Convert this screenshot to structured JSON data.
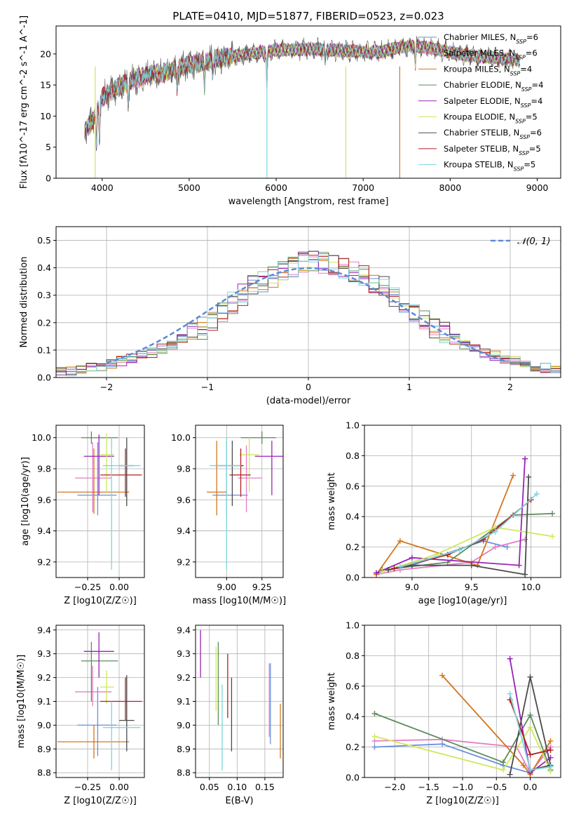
{
  "figure": {
    "title": "PLATE=0410, MJD=51877, FIBERID=0523, z=0.023"
  },
  "chart_data": [
    {
      "id": "spectrum",
      "type": "line",
      "xlabel": "wavelength [Angstrom, rest frame]",
      "ylabel": "Flux [fλ10^-17 erg cm^-2 s^-1 A^-1]",
      "xlim": [
        3470,
        9270
      ],
      "ylim": [
        0,
        24.5
      ],
      "xticks": [
        4000,
        5000,
        6000,
        7000,
        8000,
        9000
      ],
      "yticks": [
        0,
        5,
        10,
        15,
        20
      ],
      "grid": false,
      "legend": "top-right",
      "continuum": {
        "x": [
          3800,
          3900,
          4000,
          4100,
          4300,
          4500,
          4700,
          5000,
          5300,
          5600,
          6000,
          6400,
          6800,
          7200,
          7400,
          7600,
          7800,
          8200,
          8600,
          8800
        ],
        "y": [
          7.5,
          9.5,
          13,
          14,
          15.5,
          16.5,
          17,
          18.2,
          19.2,
          19.8,
          20.6,
          20.8,
          20.5,
          20.3,
          21,
          21.3,
          20.8,
          19.8,
          19.2,
          19.0
        ]
      },
      "series": [
        {
          "name": "Chabrier MILES, N_SSP=6",
          "color": "#6a8fdc"
        },
        {
          "name": "Salpeter MILES, N_SSP=6",
          "color": "#e57ec4"
        },
        {
          "name": "Kroupa MILES, N_SSP=4",
          "color": "#d2771d"
        },
        {
          "name": "Chabrier ELODIE, N_SSP=4",
          "color": "#5c8a5c"
        },
        {
          "name": "Salpeter ELODIE, N_SSP=4",
          "color": "#9a22b5"
        },
        {
          "name": "Kroupa ELODIE, N_SSP=5",
          "color": "#cfe85a"
        },
        {
          "name": "Chabrier STELIB, N_SSP=6",
          "color": "#4a4a4a"
        },
        {
          "name": "Salpeter STELIB, N_SSP=5",
          "color": "#b01e22"
        },
        {
          "name": "Kroupa STELIB, N_SSP=5",
          "color": "#7dd6dc"
        }
      ]
    },
    {
      "id": "residuals",
      "type": "line",
      "xlabel": "(data-model)/error",
      "ylabel": "Normed distribution",
      "xlim": [
        -2.5,
        2.5
      ],
      "ylim": [
        0,
        0.55
      ],
      "xticks": [
        -2,
        -1,
        0,
        1,
        2
      ],
      "yticks": [
        0.0,
        0.1,
        0.2,
        0.3,
        0.4,
        0.5
      ],
      "grid": true,
      "legend": "top-right",
      "reference": {
        "name": "𝒩(0, 1)",
        "color": "#5a8ad6"
      },
      "bin_width": 0.1,
      "base_histogram": {
        "x_start": -2.5,
        "values": [
          0.02,
          0.025,
          0.03,
          0.035,
          0.04,
          0.05,
          0.06,
          0.07,
          0.08,
          0.09,
          0.105,
          0.12,
          0.14,
          0.16,
          0.18,
          0.21,
          0.24,
          0.27,
          0.3,
          0.33,
          0.35,
          0.37,
          0.39,
          0.4,
          0.42,
          0.43,
          0.42,
          0.41,
          0.4,
          0.39,
          0.37,
          0.35,
          0.33,
          0.3,
          0.27,
          0.24,
          0.21,
          0.18,
          0.16,
          0.14,
          0.12,
          0.105,
          0.09,
          0.08,
          0.07,
          0.06,
          0.05,
          0.04,
          0.035,
          0.03
        ]
      }
    },
    {
      "id": "age-vs-Z",
      "type": "scatter",
      "xlabel": "Z [log10(Z/Z☉)]",
      "ylabel": "age [log10(age/yr)]",
      "xlim": [
        -0.5,
        0.2
      ],
      "ylim": [
        9.1,
        10.08
      ],
      "xticks": [
        -0.25,
        0.0
      ],
      "xtick_labels": [
        "−0.25",
        "0.00"
      ],
      "yticks": [
        9.2,
        9.4,
        9.6,
        9.8,
        10.0
      ],
      "ytick_labels": [
        "9.2",
        "9.4",
        "9.6",
        "9.8",
        "10.0"
      ],
      "grid": true,
      "points": [
        {
          "x": -0.17,
          "xlo": -0.33,
          "xhi": -0.02,
          "y": 9.63,
          "ylo": 9.5,
          "yhi": 9.97,
          "color": "#6a8fdc"
        },
        {
          "x": -0.21,
          "xlo": -0.35,
          "xhi": -0.06,
          "y": 9.74,
          "ylo": 9.52,
          "yhi": 9.97,
          "color": "#e57ec4"
        },
        {
          "x": -0.2,
          "xlo": -0.49,
          "xhi": 0.08,
          "y": 9.65,
          "ylo": 9.51,
          "yhi": 9.93,
          "color": "#d2771d"
        },
        {
          "x": -0.22,
          "xlo": -0.3,
          "xhi": -0.01,
          "y": 10.0,
          "ylo": 9.96,
          "yhi": 10.04,
          "color": "#5c8a5c"
        },
        {
          "x": -0.16,
          "xlo": -0.28,
          "xhi": -0.04,
          "y": 9.88,
          "ylo": 9.63,
          "yhi": 10.02,
          "color": "#9a22b5"
        },
        {
          "x": -0.1,
          "xlo": -0.15,
          "xhi": -0.04,
          "y": 9.89,
          "ylo": 9.65,
          "yhi": 10.03,
          "color": "#cfe85a"
        },
        {
          "x": 0.06,
          "xlo": 0.0,
          "xhi": 0.12,
          "y": 9.82,
          "ylo": 9.56,
          "yhi": 10.0,
          "color": "#4a4a4a"
        },
        {
          "x": 0.05,
          "xlo": -0.15,
          "xhi": 0.18,
          "y": 9.76,
          "ylo": 9.62,
          "yhi": 9.93,
          "color": "#b01e22"
        },
        {
          "x": -0.06,
          "xlo": -0.13,
          "xhi": 0.17,
          "y": 9.82,
          "ylo": 9.15,
          "yhi": 10.0,
          "color": "#7dd6dc"
        }
      ]
    },
    {
      "id": "age-vs-mass",
      "type": "scatter",
      "xlabel": "mass [log10(M/M☉)]",
      "ylabel": "",
      "xlim": [
        8.78,
        9.4
      ],
      "ylim": [
        9.1,
        10.08
      ],
      "xticks": [
        9.0,
        9.25
      ],
      "xtick_labels": [
        "9.00",
        "9.25"
      ],
      "yticks": [
        9.2,
        9.4,
        9.6,
        9.8,
        10.0
      ],
      "ytick_labels": [
        "9.2",
        "9.4",
        "9.6",
        "9.8",
        "10.0"
      ],
      "grid": true,
      "points": [
        {
          "x": 9.0,
          "xlo": 8.9,
          "xhi": 9.15,
          "y": 9.63,
          "ylo": 9.5,
          "yhi": 9.98,
          "color": "#6a8fdc"
        },
        {
          "x": 9.14,
          "xlo": 9.08,
          "xhi": 9.25,
          "y": 9.74,
          "ylo": 9.52,
          "yhi": 9.95,
          "color": "#e57ec4"
        },
        {
          "x": 8.93,
          "xlo": 8.86,
          "xhi": 9.0,
          "y": 9.65,
          "ylo": 9.5,
          "yhi": 9.98,
          "color": "#d2771d"
        },
        {
          "x": 9.25,
          "xlo": 9.1,
          "xhi": 9.35,
          "y": 10.0,
          "ylo": 9.96,
          "yhi": 10.04,
          "color": "#5c8a5c"
        },
        {
          "x": 9.32,
          "xlo": 9.2,
          "xhi": 9.4,
          "y": 9.88,
          "ylo": 9.63,
          "yhi": 9.98,
          "color": "#9a22b5"
        },
        {
          "x": 9.16,
          "xlo": 9.09,
          "xhi": 9.23,
          "y": 9.89,
          "ylo": 9.65,
          "yhi": 10.0,
          "color": "#cfe85a"
        },
        {
          "x": 9.04,
          "xlo": 8.92,
          "xhi": 9.12,
          "y": 9.82,
          "ylo": 9.56,
          "yhi": 9.98,
          "color": "#4a4a4a"
        },
        {
          "x": 9.1,
          "xlo": 9.02,
          "xhi": 9.17,
          "y": 9.76,
          "ylo": 9.62,
          "yhi": 9.93,
          "color": "#b01e22"
        },
        {
          "x": 9.0,
          "xlo": 8.88,
          "xhi": 9.1,
          "y": 9.82,
          "ylo": 9.15,
          "yhi": 10.0,
          "color": "#7dd6dc"
        }
      ]
    },
    {
      "id": "weight-vs-age",
      "type": "line",
      "xlabel": "age [log10(age/yr)]",
      "ylabel": "mass weight",
      "xlim": [
        8.6,
        10.25
      ],
      "ylim": [
        0,
        1.0
      ],
      "xticks": [
        9.0,
        9.5,
        10.0
      ],
      "xtick_labels": [
        "9.0",
        "9.5",
        "10.0"
      ],
      "yticks": [
        0.0,
        0.2,
        0.4,
        0.6,
        0.8,
        1.0
      ],
      "ytick_labels": [
        "0.0",
        "0.2",
        "0.4",
        "0.6",
        "0.8",
        "1.0"
      ],
      "grid": true,
      "series": [
        {
          "color": "#6a8fdc",
          "x": [
            8.7,
            8.8,
            9.0,
            9.6,
            9.8
          ],
          "y": [
            0.03,
            0.05,
            0.08,
            0.24,
            0.2
          ]
        },
        {
          "color": "#e57ec4",
          "x": [
            8.7,
            8.9,
            9.5,
            9.7,
            9.95
          ],
          "y": [
            0.02,
            0.05,
            0.1,
            0.2,
            0.25
          ]
        },
        {
          "color": "#d2771d",
          "x": [
            8.7,
            8.9,
            9.55,
            9.85
          ],
          "y": [
            0.02,
            0.24,
            0.08,
            0.67
          ]
        },
        {
          "color": "#5c8a5c",
          "x": [
            8.75,
            9.3,
            9.85,
            10.18
          ],
          "y": [
            0.05,
            0.1,
            0.41,
            0.42
          ]
        },
        {
          "color": "#9a22b5",
          "x": [
            8.7,
            9.0,
            9.9,
            9.95
          ],
          "y": [
            0.03,
            0.13,
            0.08,
            0.78
          ]
        },
        {
          "color": "#cfe85a",
          "x": [
            8.75,
            9.2,
            9.7,
            10.18
          ],
          "y": [
            0.04,
            0.15,
            0.33,
            0.27
          ]
        },
        {
          "color": "#4a4a4a",
          "x": [
            8.8,
            9.0,
            9.5,
            9.95,
            9.98
          ],
          "y": [
            0.05,
            0.08,
            0.08,
            0.02,
            0.66
          ]
        },
        {
          "color": "#b01e22",
          "x": [
            8.85,
            9.3,
            9.6,
            10.0
          ],
          "y": [
            0.06,
            0.15,
            0.25,
            0.51
          ]
        },
        {
          "color": "#7dd6dc",
          "x": [
            8.9,
            9.4,
            9.7,
            10.05
          ],
          "y": [
            0.07,
            0.18,
            0.3,
            0.55
          ]
        }
      ]
    },
    {
      "id": "mass-vs-Z",
      "type": "scatter",
      "xlabel": "Z [log10(Z/Z☉)]",
      "ylabel": "mass [log10(M/M☉)]",
      "xlim": [
        -0.5,
        0.2
      ],
      "ylim": [
        8.78,
        9.42
      ],
      "xticks": [
        -0.25,
        0.0
      ],
      "xtick_labels": [
        "−0.25",
        "0.00"
      ],
      "yticks": [
        8.8,
        8.9,
        9.0,
        9.1,
        9.2,
        9.3,
        9.4
      ],
      "ytick_labels": [
        "8.8",
        "8.9",
        "9.0",
        "9.1",
        "9.2",
        "9.3",
        "9.4"
      ],
      "grid": true,
      "points": [
        {
          "x": -0.17,
          "xlo": -0.33,
          "xhi": -0.02,
          "y": 9.0,
          "ylo": 8.87,
          "yhi": 9.16,
          "color": "#6a8fdc"
        },
        {
          "x": -0.21,
          "xlo": -0.35,
          "xhi": -0.06,
          "y": 9.14,
          "ylo": 9.08,
          "yhi": 9.25,
          "color": "#e57ec4"
        },
        {
          "x": -0.2,
          "xlo": -0.49,
          "xhi": 0.08,
          "y": 8.93,
          "ylo": 8.86,
          "yhi": 9.0,
          "color": "#d2771d"
        },
        {
          "x": -0.22,
          "xlo": -0.3,
          "xhi": -0.01,
          "y": 9.27,
          "ylo": 9.1,
          "yhi": 9.35,
          "color": "#5c8a5c"
        },
        {
          "x": -0.16,
          "xlo": -0.28,
          "xhi": -0.04,
          "y": 9.31,
          "ylo": 9.2,
          "yhi": 9.39,
          "color": "#9a22b5"
        },
        {
          "x": -0.1,
          "xlo": -0.15,
          "xhi": -0.04,
          "y": 9.16,
          "ylo": 9.09,
          "yhi": 9.23,
          "color": "#cfe85a"
        },
        {
          "x": 0.06,
          "xlo": 0.0,
          "xhi": 0.12,
          "y": 9.02,
          "ylo": 8.89,
          "yhi": 9.21,
          "color": "#4a4a4a"
        },
        {
          "x": 0.05,
          "xlo": -0.15,
          "xhi": 0.18,
          "y": 9.1,
          "ylo": 9.02,
          "yhi": 9.2,
          "color": "#b01e22"
        },
        {
          "x": -0.06,
          "xlo": -0.13,
          "xhi": 0.17,
          "y": 8.99,
          "ylo": 8.81,
          "yhi": 9.1,
          "color": "#7dd6dc"
        }
      ]
    },
    {
      "id": "mass-vs-EBV",
      "type": "scatter",
      "xlabel": "E(B-V)",
      "ylabel": "",
      "xlim": [
        0.025,
        0.183
      ],
      "ylim": [
        8.78,
        9.42
      ],
      "xticks": [
        0.05,
        0.1,
        0.15
      ],
      "xtick_labels": [
        "0.05",
        "0.10",
        "0.15"
      ],
      "yticks": [
        8.8,
        8.9,
        9.0,
        9.1,
        9.2,
        9.3,
        9.4
      ],
      "ytick_labels": [
        "8.8",
        "8.9",
        "9.0",
        "9.1",
        "9.2",
        "9.3",
        "9.4"
      ],
      "grid": true,
      "points": [
        {
          "x": 0.16,
          "ylo": 8.92,
          "yhi": 9.26,
          "color": "#6a8fdc"
        },
        {
          "x": 0.158,
          "ylo": 8.95,
          "yhi": 9.26,
          "color": "#e57ec4"
        },
        {
          "x": 0.178,
          "ylo": 8.86,
          "yhi": 9.09,
          "color": "#d2771d"
        },
        {
          "x": 0.066,
          "ylo": 9.0,
          "yhi": 9.35,
          "color": "#5c8a5c"
        },
        {
          "x": 0.034,
          "ylo": 9.2,
          "yhi": 9.4,
          "color": "#9a22b5"
        },
        {
          "x": 0.062,
          "ylo": 9.06,
          "yhi": 9.33,
          "color": "#cfe85a"
        },
        {
          "x": 0.09,
          "ylo": 8.89,
          "yhi": 9.2,
          "color": "#4a4a4a"
        },
        {
          "x": 0.083,
          "ylo": 9.03,
          "yhi": 9.3,
          "color": "#b01e22"
        },
        {
          "x": 0.073,
          "ylo": 8.81,
          "yhi": 9.17,
          "color": "#7dd6dc"
        }
      ]
    },
    {
      "id": "weight-vs-Z",
      "type": "line",
      "xlabel": "Z [log10(Z/Z☉)]",
      "ylabel": "mass weight",
      "xlim": [
        -2.45,
        0.45
      ],
      "ylim": [
        0,
        1.0
      ],
      "xticks": [
        -2.0,
        -1.5,
        -1.0,
        -0.5,
        0.0
      ],
      "xtick_labels": [
        "−2.0",
        "−1.5",
        "−1.0",
        "−0.5",
        "0.0"
      ],
      "yticks": [
        0.0,
        0.2,
        0.4,
        0.6,
        0.8,
        1.0
      ],
      "ytick_labels": [
        "0.0",
        "0.2",
        "0.4",
        "0.6",
        "0.8",
        "1.0"
      ],
      "grid": true,
      "series": [
        {
          "color": "#6a8fdc",
          "x": [
            -2.3,
            -1.3,
            -0.4,
            0.0,
            0.3
          ],
          "y": [
            0.2,
            0.22,
            0.08,
            0.03,
            0.2
          ]
        },
        {
          "color": "#e57ec4",
          "x": [
            -2.3,
            -1.3,
            -0.2,
            0.0,
            0.3
          ],
          "y": [
            0.24,
            0.25,
            0.2,
            0.03,
            0.2
          ]
        },
        {
          "color": "#d2771d",
          "x": [
            -1.3,
            -0.1,
            0.0,
            0.3
          ],
          "y": [
            0.67,
            0.08,
            0.02,
            0.24
          ]
        },
        {
          "color": "#5c8a5c",
          "x": [
            -2.3,
            -0.4,
            0.0,
            0.3
          ],
          "y": [
            0.42,
            0.1,
            0.41,
            0.05
          ]
        },
        {
          "color": "#9a22b5",
          "x": [
            -0.3,
            0.0,
            0.3
          ],
          "y": [
            0.78,
            0.03,
            0.13
          ]
        },
        {
          "color": "#cfe85a",
          "x": [
            -2.3,
            -0.4,
            0.0,
            0.3
          ],
          "y": [
            0.27,
            0.05,
            0.33,
            0.04
          ]
        },
        {
          "color": "#4a4a4a",
          "x": [
            -0.3,
            0.0,
            0.3,
            0.0
          ],
          "y": [
            0.02,
            0.66,
            0.08,
            0.05
          ]
        },
        {
          "color": "#b01e22",
          "x": [
            -0.3,
            0.0,
            0.3
          ],
          "y": [
            0.51,
            0.15,
            0.18
          ]
        },
        {
          "color": "#7dd6dc",
          "x": [
            -0.3,
            0.0,
            0.3
          ],
          "y": [
            0.55,
            0.05,
            0.07
          ]
        }
      ]
    }
  ]
}
